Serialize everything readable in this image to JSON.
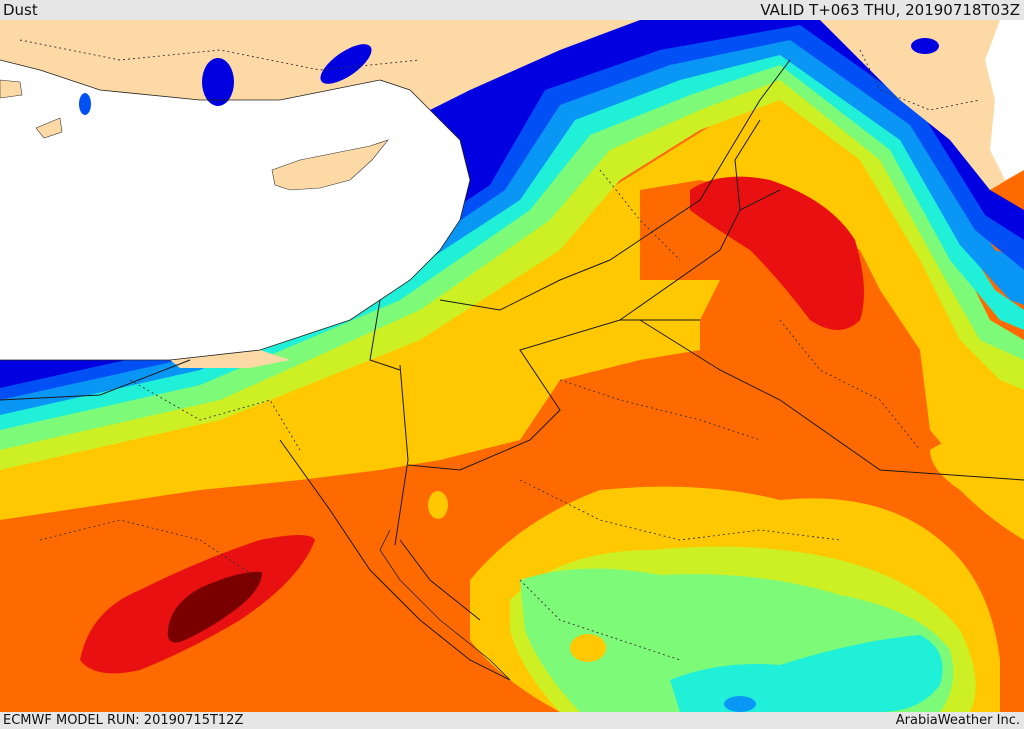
{
  "header": {
    "title": "Dust",
    "valid_time": "VALID T+063 THU, 20190718T03Z"
  },
  "footer": {
    "model_run": "ECMWF MODEL RUN: 20190715T12Z",
    "credit": "ArabiaWeather Inc."
  },
  "palette": {
    "sea": "#ffffff",
    "land": "#fcd9a5",
    "level_1": "#0000e0",
    "level_2": "#0050f5",
    "level_3": "#0a96f5",
    "level_4": "#20f0d8",
    "level_5": "#7cfa78",
    "level_6": "#ccf024",
    "level_7": "#ffc800",
    "level_8": "#ff6a00",
    "level_9": "#e81010",
    "level_10": "#7a0000"
  }
}
